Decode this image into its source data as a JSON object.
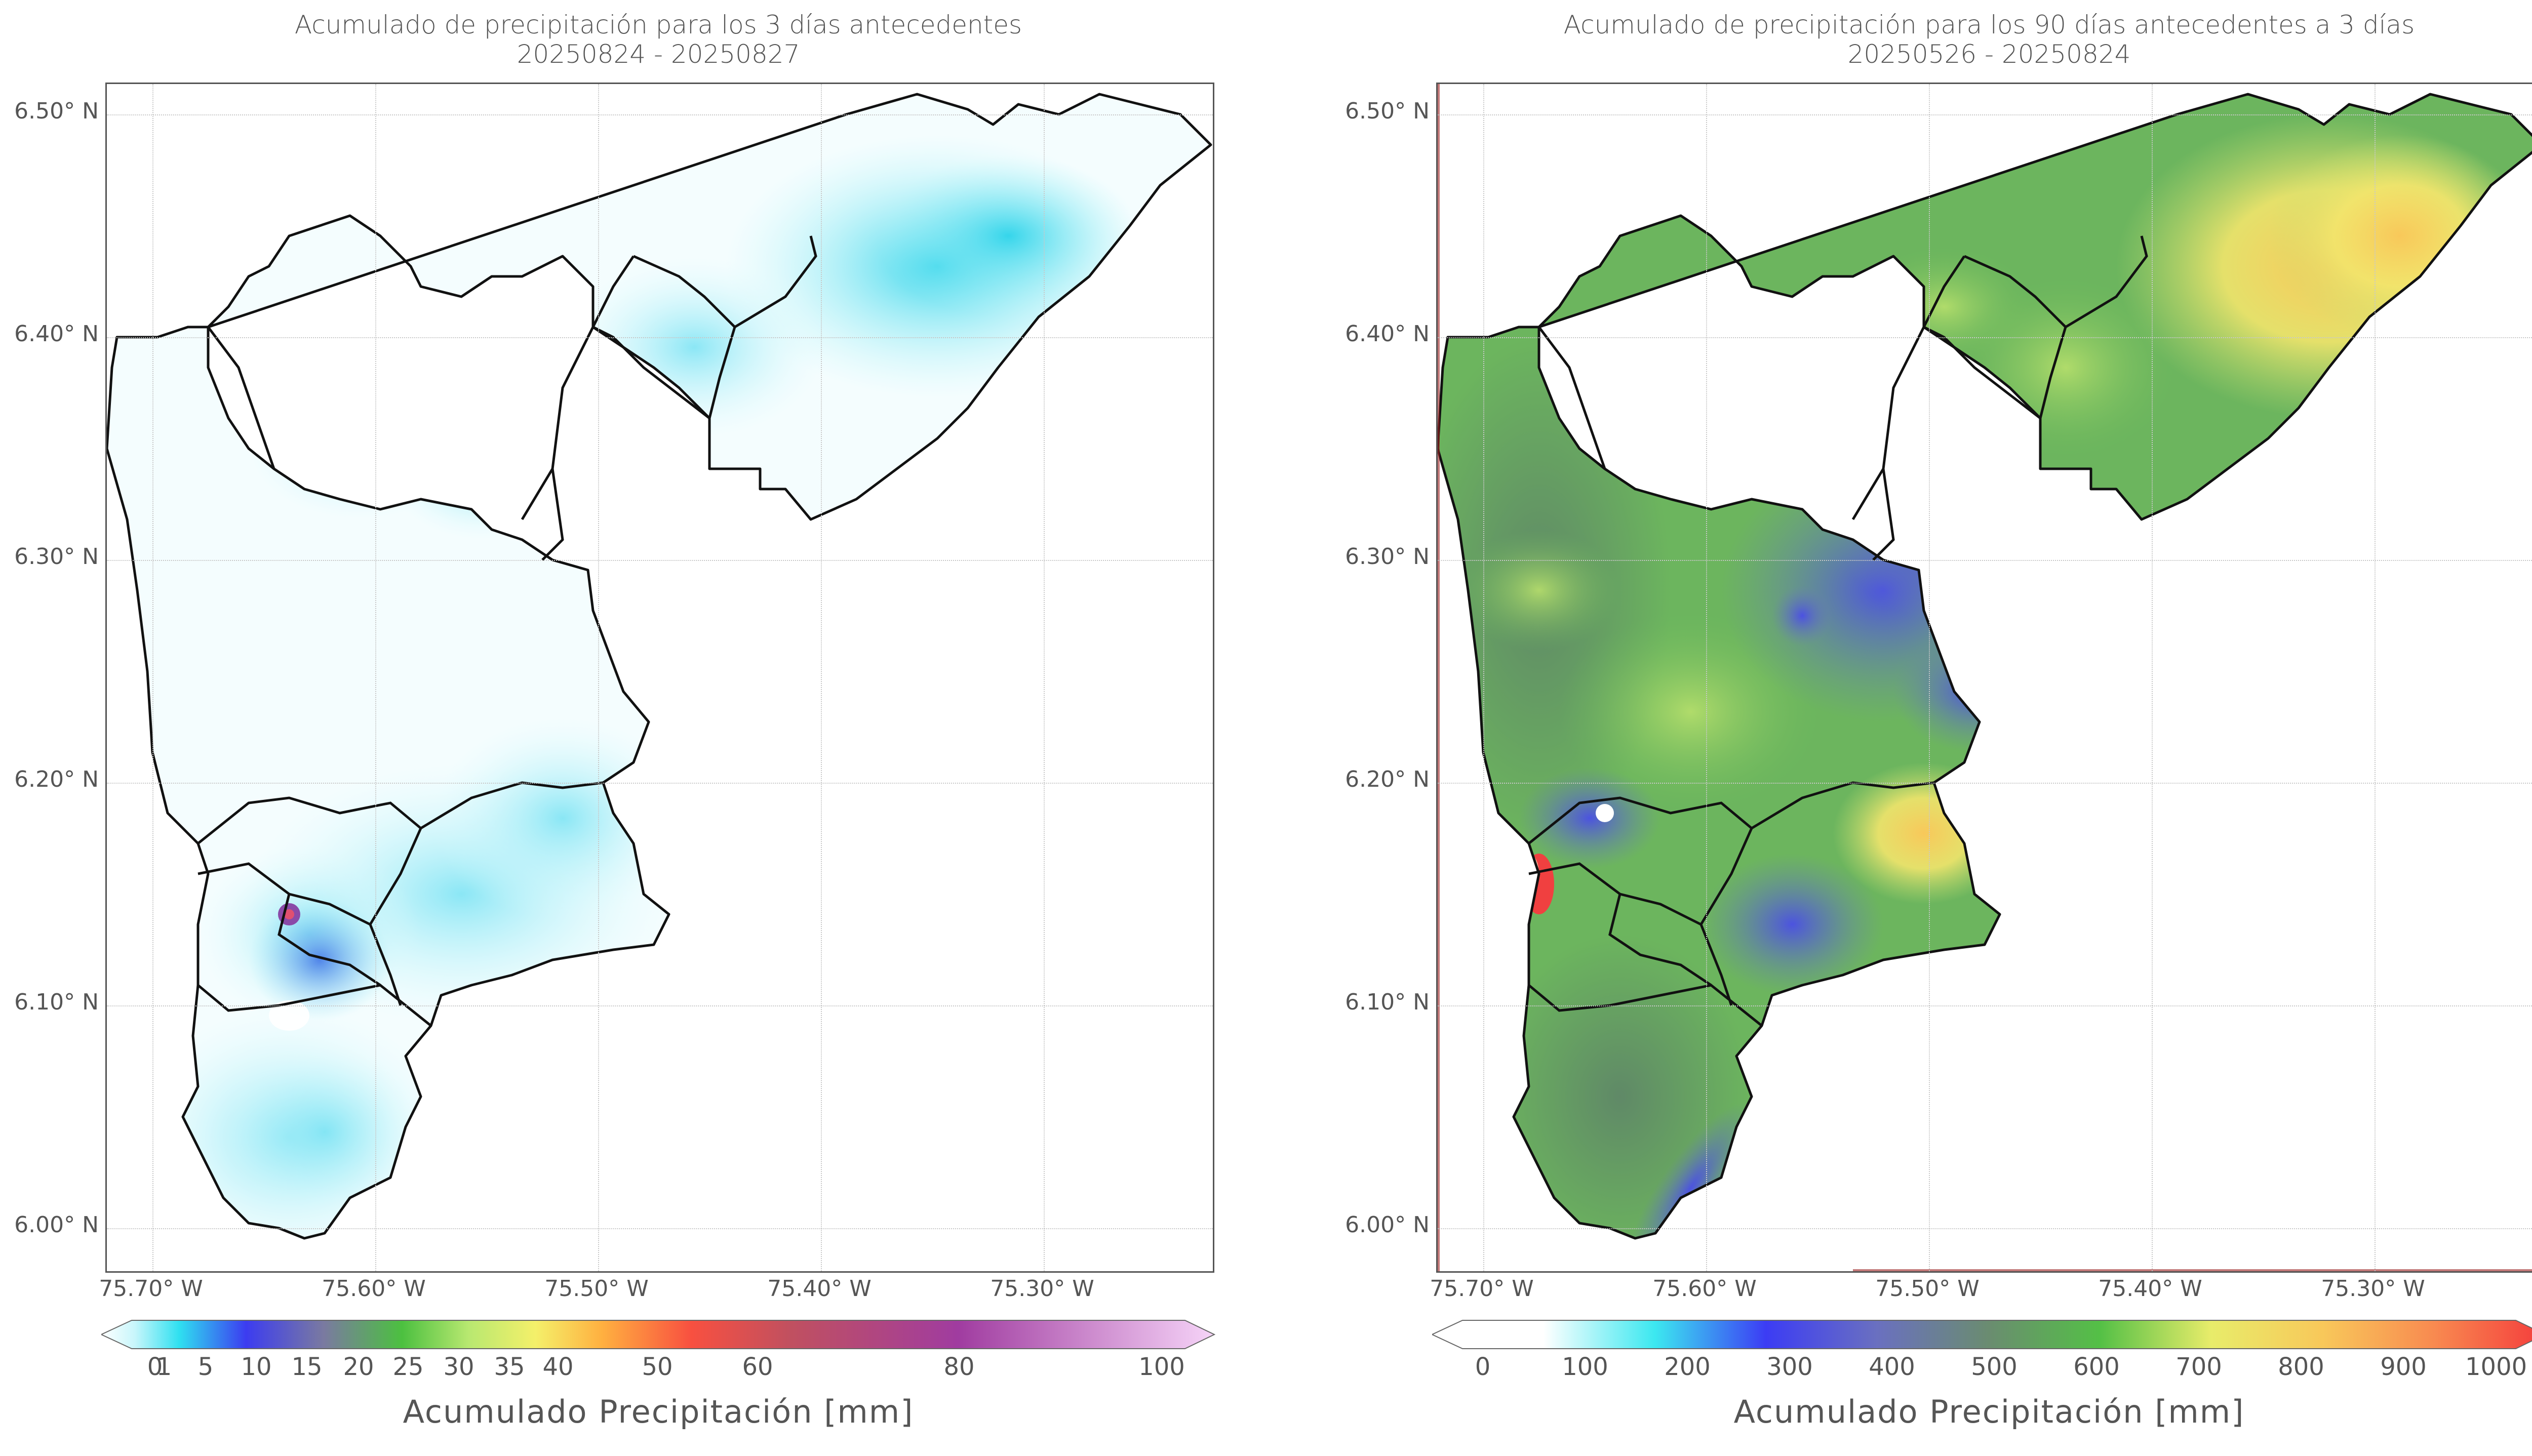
{
  "left_map": {
    "title_line1": "Acumulado de precipitación para los 3 días antecedentes",
    "title_line2": "20250824 - 20250827",
    "lat_labels": [
      "6.50° N",
      "6.40° N",
      "6.30° N",
      "6.20° N",
      "6.10° N",
      "6.00° N"
    ],
    "lon_labels": [
      "75.70° W",
      "75.60° W",
      "75.50° W",
      "75.40° W",
      "75.30° W"
    ],
    "colorbar": {
      "ticks": [
        "0",
        "1",
        "5",
        "10",
        "15",
        "20",
        "25",
        "30",
        "35",
        "40",
        "50",
        "60",
        "80",
        "100"
      ],
      "label": "Acumulado Precipitación [mm]"
    }
  },
  "right_map": {
    "title_line1": "Acumulado de precipitación para los 90 días antecedentes a 3 días",
    "title_line2": "20250526 - 20250824",
    "lat_labels": [
      "6.50° N",
      "6.40° N",
      "6.30° N",
      "6.20° N",
      "6.10° N",
      "6.00° N"
    ],
    "lon_labels": [
      "75.70° W",
      "75.60° W",
      "75.50° W",
      "75.40° W",
      "75.30° W"
    ],
    "colorbar": {
      "ticks": [
        "0",
        "100",
        "200",
        "300",
        "400",
        "500",
        "600",
        "700",
        "800",
        "900",
        "1000"
      ],
      "label": "Acumulado Precipitación [mm]"
    }
  },
  "colors": {
    "boundary": "#111111",
    "left_field": "#7fecf2",
    "left_peak": "#2fd4ea",
    "right_field": "#6dbb5c",
    "right_wet": "#5a5ed8",
    "right_dry": "#f0e06a"
  }
}
